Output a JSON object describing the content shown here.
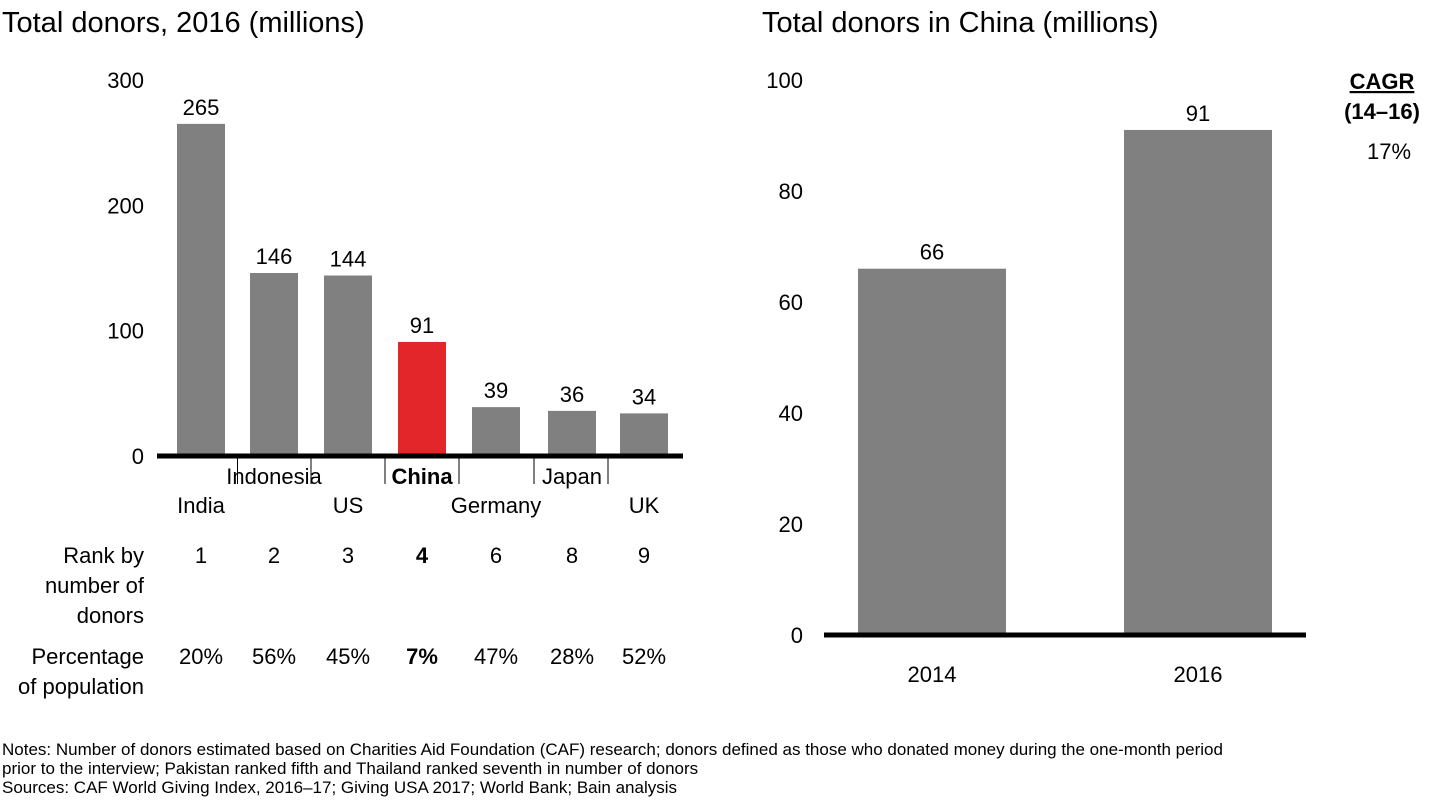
{
  "chart_data": [
    {
      "type": "bar",
      "title": "Total donors, 2016 (millions)",
      "categories": [
        "India",
        "Indonesia",
        "US",
        "China",
        "Germany",
        "Japan",
        "UK"
      ],
      "values": [
        265,
        146,
        144,
        91,
        39,
        36,
        34
      ],
      "highlight_category": "China",
      "yticks": [
        0,
        100,
        200,
        300
      ],
      "ylim": [
        0,
        300
      ],
      "colors": {
        "bar": "#808080",
        "highlight": "#e3262a",
        "axis": "#000000"
      },
      "table": {
        "rows": [
          {
            "label_lines": [
              "Rank by",
              "number of",
              "donors"
            ],
            "values": [
              "1",
              "2",
              "3",
              "4",
              "6",
              "8",
              "9"
            ]
          },
          {
            "label_lines": [
              "Percentage",
              "of population"
            ],
            "values": [
              "20%",
              "56%",
              "45%",
              "7%",
              "47%",
              "28%",
              "52%"
            ]
          }
        ]
      }
    },
    {
      "type": "bar",
      "title": "Total donors in China (millions)",
      "categories": [
        "2014",
        "2016"
      ],
      "values": [
        66,
        91
      ],
      "yticks": [
        0,
        20,
        40,
        60,
        80,
        100
      ],
      "ylim": [
        0,
        100
      ],
      "colors": {
        "bar": "#808080",
        "axis": "#000000"
      },
      "cagr": {
        "title": "CAGR",
        "period": "(14–16)",
        "value": "17%"
      }
    }
  ],
  "notes": {
    "lines": [
      "Notes: Number of donors estimated based on Charities Aid Foundation (CAF) research; donors defined as those who donated money during the one-month period",
      "prior to the interview; Pakistan ranked fifth and Thailand ranked seventh in number of donors",
      "Sources: CAF World Giving Index, 2016–17; Giving USA 2017; World Bank; Bain analysis"
    ]
  }
}
